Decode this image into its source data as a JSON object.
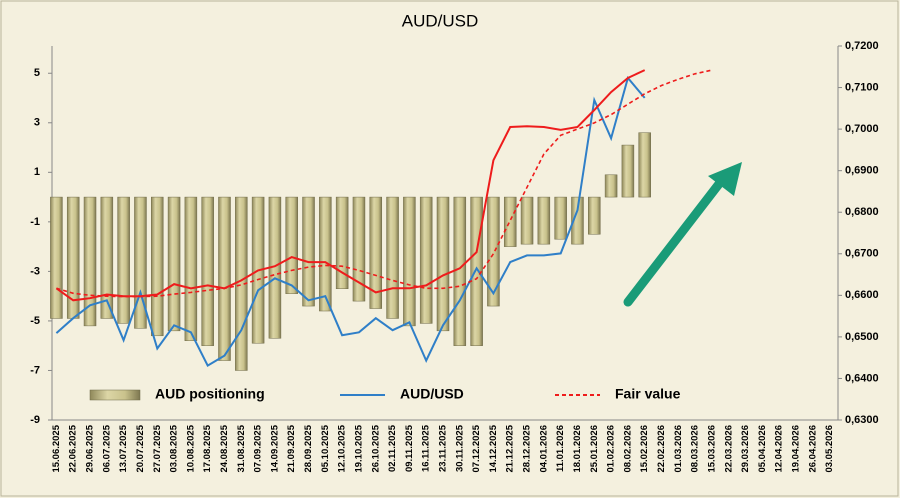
{
  "chart_data": {
    "type": "bar",
    "title": "AUD/USD",
    "categories": [
      "15.06.2025",
      "22.06.2025",
      "29.06.2025",
      "06.07.2025",
      "13.07.2025",
      "20.07.2025",
      "27.07.2025",
      "03.08.2025",
      "10.08.2025",
      "17.08.2025",
      "24.08.2025",
      "31.08.2025",
      "07.09.2025",
      "14.09.2025",
      "21.09.2025",
      "28.09.2025",
      "05.10.2025",
      "12.10.2025",
      "19.10.2025",
      "26.10.2025",
      "02.11.2025",
      "09.11.2025",
      "16.11.2025",
      "23.11.2025",
      "30.11.2025",
      "07.12.2025",
      "14.12.2025",
      "21.12.2025",
      "28.12.2025",
      "04.01.2026",
      "11.01.2026",
      "18.01.2026",
      "25.01.2026",
      "01.02.2026",
      "08.02.2026",
      "15.02.2026",
      "22.02.2026",
      "01.03.2026",
      "08.03.2026",
      "15.03.2026",
      "22.03.2026",
      "29.03.2026",
      "05.04.2026",
      "12.04.2026",
      "19.04.2026",
      "26.04.2026",
      "03.05.2026"
    ],
    "series": [
      {
        "name": "AUD positioning",
        "type": "bar",
        "color": "#c9c28c",
        "axis": "y",
        "values": [
          -4.9,
          -4.9,
          -5.2,
          -4.9,
          -5.1,
          -5.3,
          -5.6,
          -5.4,
          -5.8,
          -6.0,
          -6.6,
          -7.0,
          -5.9,
          -5.7,
          -3.9,
          -4.4,
          -4.6,
          -3.7,
          -4.2,
          -4.5,
          -4.9,
          -5.2,
          -5.1,
          -5.4,
          -6.0,
          -6.0,
          -4.4,
          -2.0,
          -1.9,
          -1.9,
          -1.7,
          -1.9,
          -1.5,
          0.9,
          2.1,
          2.6,
          null,
          null,
          null,
          null,
          null,
          null,
          null,
          null,
          null,
          null,
          null
        ]
      },
      {
        "name": "AUD/USD",
        "type": "line",
        "color": "#2f7fc8",
        "axis": "y2",
        "dash": false,
        "values": [
          0.6509,
          0.6545,
          0.6576,
          0.6588,
          0.6492,
          0.6607,
          0.6472,
          0.6528,
          0.6511,
          0.6431,
          0.6455,
          0.6516,
          0.6612,
          0.6641,
          0.6624,
          0.6588,
          0.6598,
          0.6504,
          0.6511,
          0.6545,
          0.6516,
          0.6535,
          0.6443,
          0.6528,
          0.6588,
          0.6665,
          0.6605,
          0.668,
          0.6696,
          0.6696,
          0.6701,
          0.6805,
          0.707,
          0.6978,
          0.7123,
          0.7075,
          null,
          null,
          null,
          null,
          null,
          null,
          null,
          null,
          null,
          null,
          null
        ]
      },
      {
        "type": "line",
        "color": "#ee1c1c",
        "axis": "y2",
        "dash": false,
        "values": [
          0.6617,
          0.6588,
          0.6593,
          0.6602,
          0.6598,
          0.6598,
          0.6602,
          0.6627,
          0.6617,
          0.6624,
          0.6617,
          0.6636,
          0.666,
          0.667,
          0.6692,
          0.668,
          0.668,
          0.6655,
          0.6631,
          0.6607,
          0.6617,
          0.6617,
          0.6624,
          0.6648,
          0.6665,
          0.6704,
          0.6925,
          0.7005,
          0.7007,
          0.7005,
          0.6998,
          0.7005,
          0.7046,
          0.7089,
          0.7123,
          0.7142,
          null,
          null,
          null,
          null,
          null,
          null,
          null,
          null,
          null,
          null,
          null
        ]
      },
      {
        "name": "Fair value",
        "type": "line",
        "color": "#ee1c1c",
        "axis": "y2",
        "dash": true,
        "values": [
          0.6617,
          0.6605,
          0.66,
          0.6598,
          0.6597,
          0.6597,
          0.6598,
          0.6603,
          0.6607,
          0.6612,
          0.6617,
          0.6625,
          0.6638,
          0.665,
          0.666,
          0.6668,
          0.6672,
          0.667,
          0.666,
          0.6648,
          0.6636,
          0.6625,
          0.6617,
          0.6617,
          0.6622,
          0.664,
          0.67,
          0.678,
          0.686,
          0.694,
          0.6985,
          0.7,
          0.7015,
          0.7035,
          0.706,
          0.7085,
          0.7105,
          0.712,
          0.7133,
          0.7142,
          null,
          null,
          null,
          null,
          null,
          null,
          null
        ]
      }
    ],
    "ylim": [
      -9,
      6.1
    ],
    "yticks": [
      5,
      3,
      1,
      -1,
      -3,
      -5,
      -7,
      -9
    ],
    "y2lim": [
      0.63,
      0.72
    ],
    "y2ticks": [
      {
        "value": 0.72,
        "label": "0,7200"
      },
      {
        "value": 0.71,
        "label": "0,7100"
      },
      {
        "value": 0.7,
        "label": "0,7000"
      },
      {
        "value": 0.69,
        "label": "0,6900"
      },
      {
        "value": 0.68,
        "label": "0,6800"
      },
      {
        "value": 0.67,
        "label": "0,6700"
      },
      {
        "value": 0.66,
        "label": "0,6600"
      },
      {
        "value": 0.65,
        "label": "0,6500"
      },
      {
        "value": 0.64,
        "label": "0,6400"
      },
      {
        "value": 0.63,
        "label": "0,6300"
      }
    ],
    "legend": "bottom",
    "grid": false
  }
}
